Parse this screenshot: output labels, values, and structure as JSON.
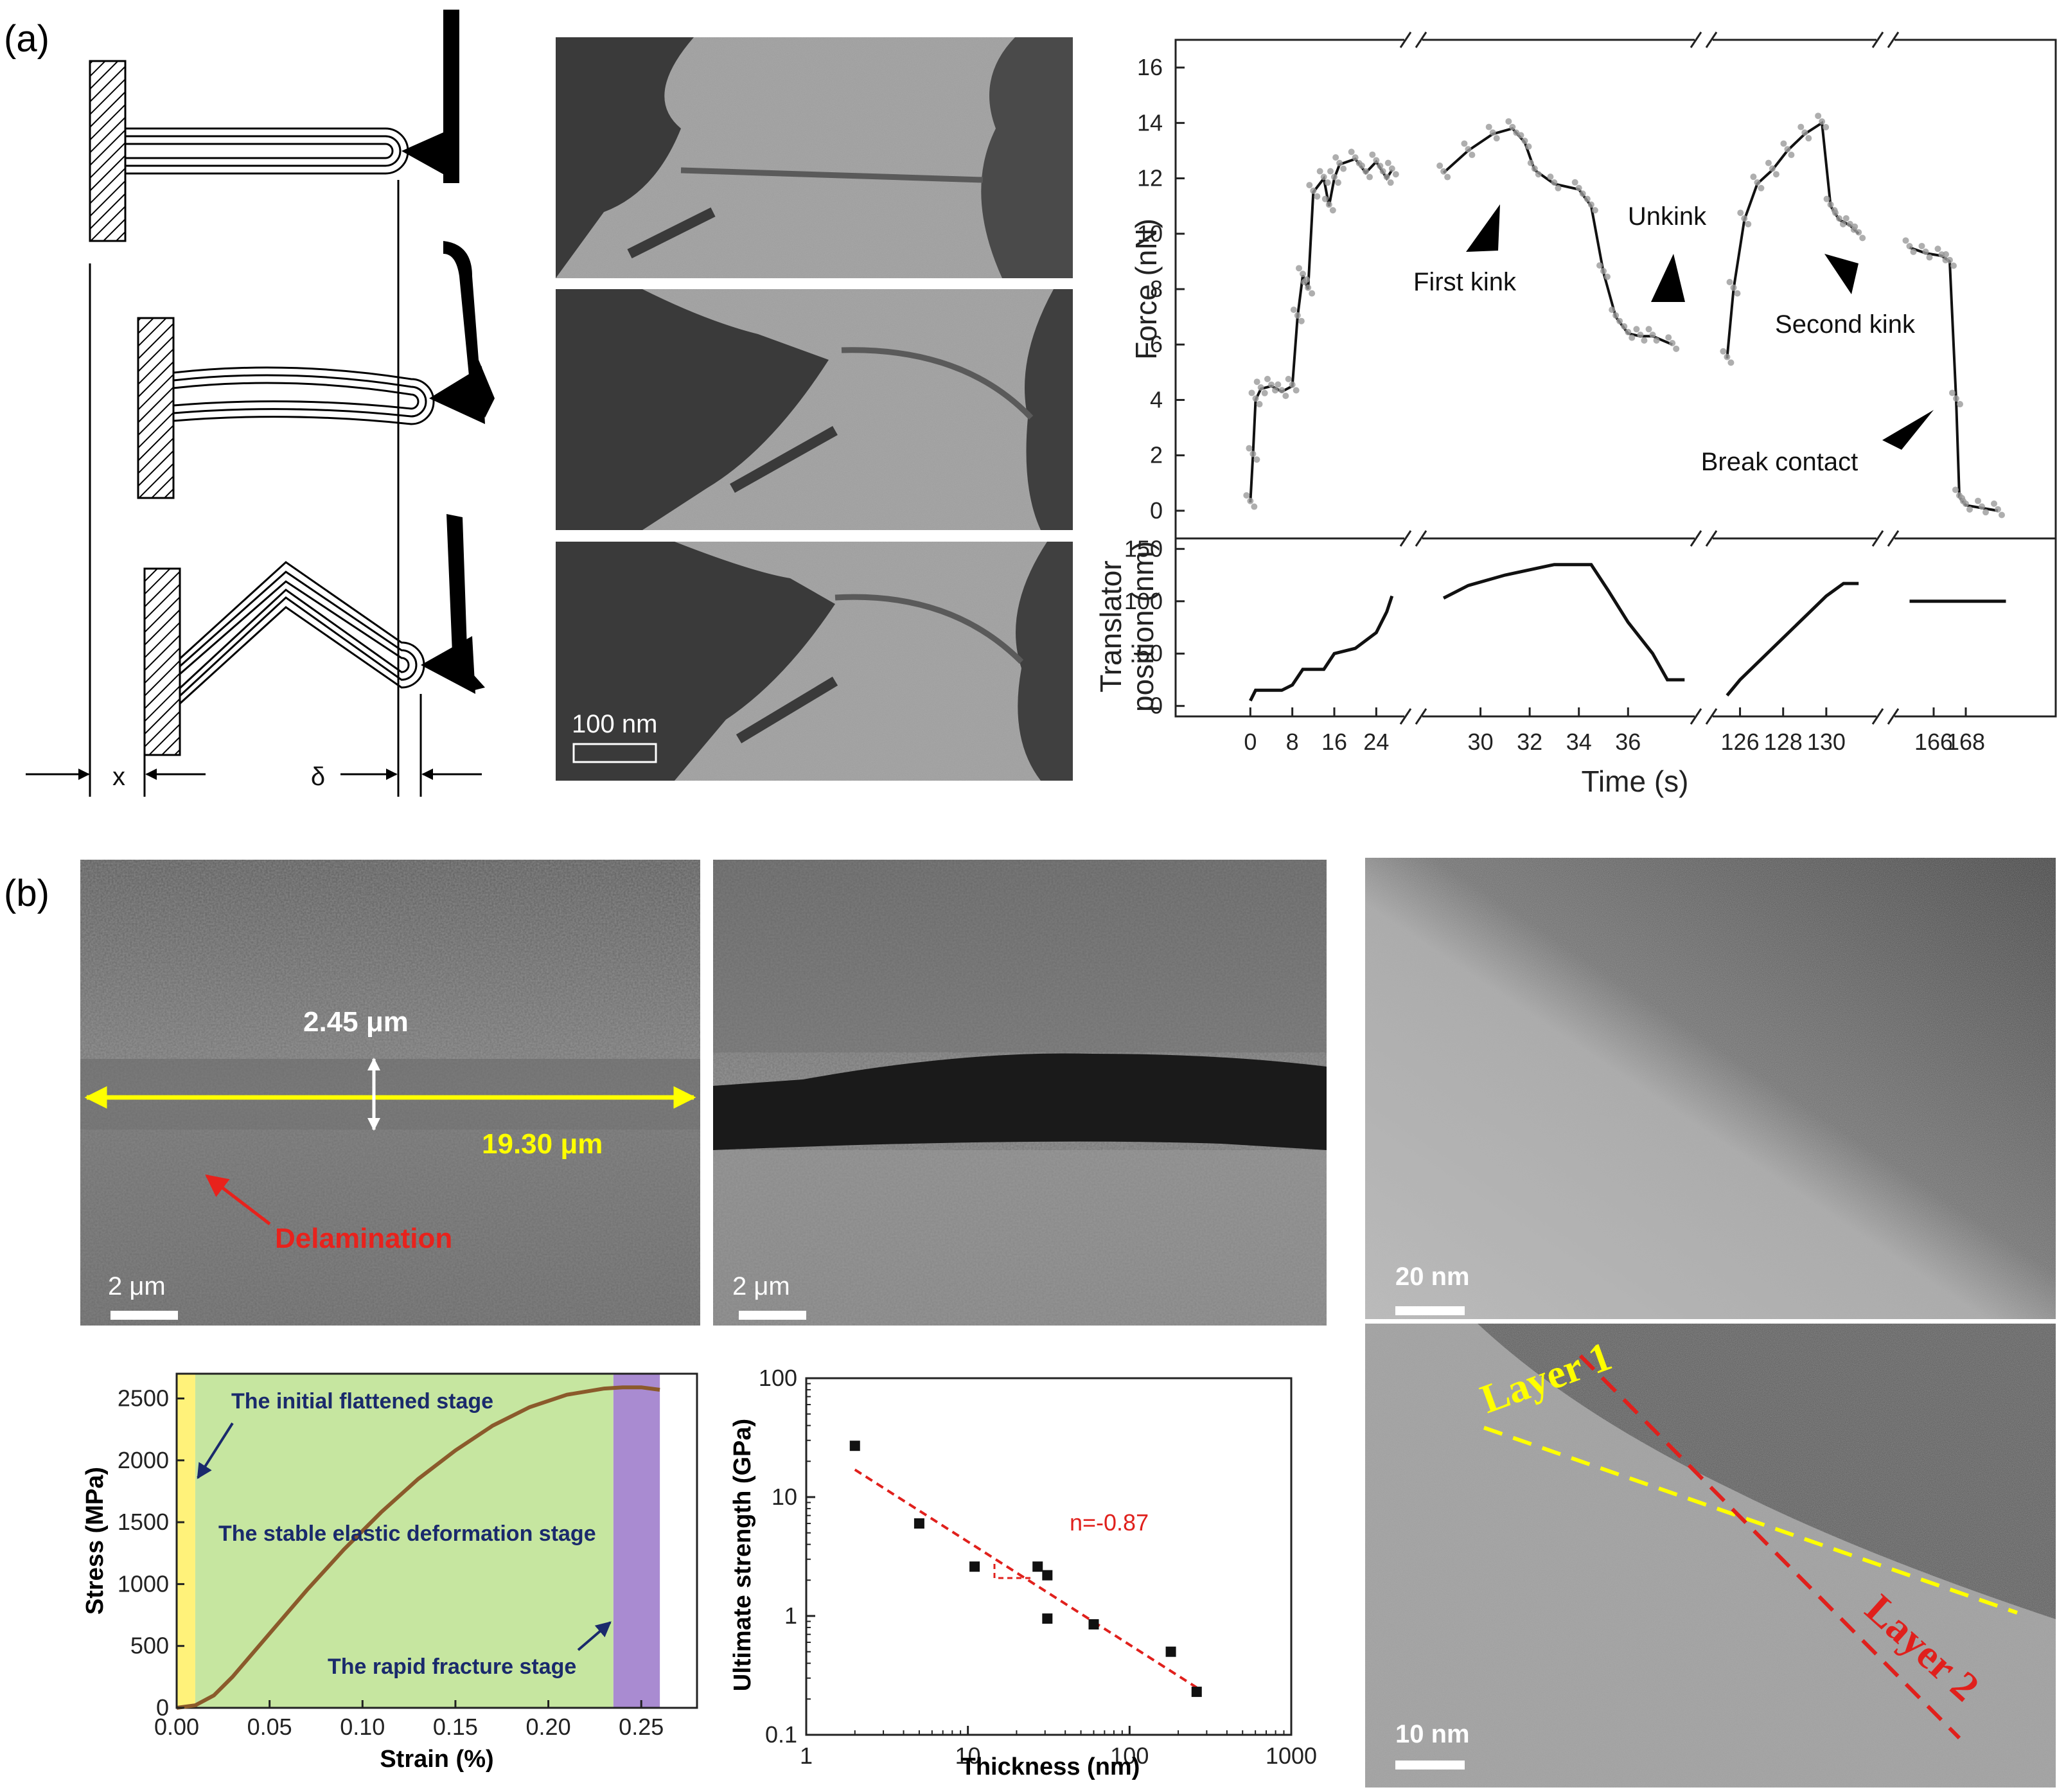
{
  "labels": {
    "panel_a": "(a)",
    "panel_b": "(b)"
  },
  "schematic": {
    "x_label": "x",
    "delta_label": "δ"
  },
  "micrographs_a": {
    "scalebar": "100 nm"
  },
  "sem_b": {
    "thickness": "2.45 μm",
    "length": "19.30 μm",
    "delamination": "Delamination",
    "scalebar_left": "2 μm",
    "scalebar_right": "2 μm"
  },
  "tem_b": {
    "scalebar_top": "20 nm",
    "scalebar_bottom": "10 nm",
    "layer1": "Layer 1",
    "layer2": "Layer 2"
  },
  "colors": {
    "yellow": "#ffff00",
    "red": "#e8221c",
    "green_region": "#c6e6a0",
    "purple_region": "#a98bd1",
    "curve": "#8b5a2b",
    "dash_red": "#e0201c"
  },
  "chart_data": [
    {
      "type": "line",
      "title": "",
      "ylabel": "Force (nN)",
      "xlabel": "Time (s)",
      "ylim": [
        -1,
        17
      ],
      "yticks": [
        0,
        2,
        4,
        6,
        8,
        10,
        12,
        14,
        16
      ],
      "segments": [
        {
          "xticks": [
            "0",
            "8",
            "16",
            "24"
          ],
          "xrange": [
            -2,
            28
          ],
          "points": [
            [
              0,
              0.3
            ],
            [
              0.5,
              2.0
            ],
            [
              1,
              4.0
            ],
            [
              2,
              4.4
            ],
            [
              4,
              4.5
            ],
            [
              6,
              4.3
            ],
            [
              8,
              4.5
            ],
            [
              9,
              7.0
            ],
            [
              10,
              8.5
            ],
            [
              11,
              8.0
            ],
            [
              12,
              11.5
            ],
            [
              14,
              12.0
            ],
            [
              15,
              11.0
            ],
            [
              16,
              12.0
            ],
            [
              17,
              12.5
            ],
            [
              20,
              12.7
            ],
            [
              22,
              12.2
            ],
            [
              24,
              12.6
            ],
            [
              26,
              12.0
            ],
            [
              27,
              12.3
            ]
          ]
        },
        {
          "xticks": [
            "30",
            "32",
            "34",
            "36"
          ],
          "xrange": [
            28,
            38.5
          ],
          "points": [
            [
              28.5,
              12.2
            ],
            [
              29.5,
              13.0
            ],
            [
              30.5,
              13.6
            ],
            [
              31.3,
              13.8
            ],
            [
              31.8,
              13.3
            ],
            [
              32.2,
              12.3
            ],
            [
              33,
              11.8
            ],
            [
              34,
              11.6
            ],
            [
              34.5,
              11.0
            ],
            [
              35,
              8.6
            ],
            [
              35.5,
              7.0
            ],
            [
              36,
              6.4
            ],
            [
              36.5,
              6.3
            ],
            [
              37,
              6.3
            ],
            [
              37.8,
              6.0
            ]
          ]
        },
        {
          "xticks": [
            "126",
            "128",
            "130"
          ],
          "xrange": [
            125,
            132
          ],
          "points": [
            [
              125.4,
              5.5
            ],
            [
              125.7,
              8.0
            ],
            [
              126.2,
              10.5
            ],
            [
              126.8,
              11.8
            ],
            [
              127.5,
              12.3
            ],
            [
              128.2,
              13.0
            ],
            [
              129,
              13.6
            ],
            [
              129.8,
              14.0
            ],
            [
              130.2,
              11.0
            ],
            [
              130.6,
              10.5
            ],
            [
              131.1,
              10.3
            ],
            [
              131.5,
              10.0
            ]
          ]
        },
        {
          "xticks": [
            "166",
            "168"
          ],
          "xrange": [
            164,
            171
          ],
          "points": [
            [
              164.5,
              9.5
            ],
            [
              165.5,
              9.3
            ],
            [
              166.5,
              9.2
            ],
            [
              167,
              9.0
            ],
            [
              167.4,
              4.0
            ],
            [
              167.6,
              0.5
            ],
            [
              168,
              0.2
            ],
            [
              169,
              0.1
            ],
            [
              170,
              0.0
            ]
          ]
        }
      ],
      "annotations": [
        "First kink",
        "Unkink",
        "Second kink",
        "Break contact"
      ]
    },
    {
      "type": "line",
      "ylabel": "Translator position (nm)",
      "ylim": [
        -10,
        160
      ],
      "yticks": [
        0,
        50,
        100,
        150
      ],
      "segments": [
        {
          "points": [
            [
              0,
              5
            ],
            [
              1,
              15
            ],
            [
              6,
              15
            ],
            [
              8,
              20
            ],
            [
              10,
              35
            ],
            [
              14,
              35
            ],
            [
              16,
              50
            ],
            [
              20,
              55
            ],
            [
              24,
              70
            ],
            [
              26,
              90
            ],
            [
              27,
              105
            ]
          ]
        },
        {
          "points": [
            [
              28.5,
              103
            ],
            [
              29.5,
              115
            ],
            [
              31,
              125
            ],
            [
              33,
              135
            ],
            [
              34.5,
              135
            ],
            [
              35.2,
              110
            ],
            [
              36,
              80
            ],
            [
              37,
              50
            ],
            [
              37.6,
              25
            ],
            [
              38.3,
              25
            ]
          ]
        },
        {
          "points": [
            [
              125.4,
              10
            ],
            [
              126,
              25
            ],
            [
              127,
              45
            ],
            [
              128,
              65
            ],
            [
              129,
              85
            ],
            [
              130,
              105
            ],
            [
              130.8,
              117
            ],
            [
              131.5,
              117
            ]
          ]
        },
        {
          "points": [
            [
              164.5,
              100
            ],
            [
              170.5,
              100
            ]
          ]
        }
      ]
    },
    {
      "type": "line",
      "xlabel": "Strain (%)",
      "ylabel": "Stress (MPa)",
      "xlim": [
        0,
        0.28
      ],
      "ylim": [
        0,
        2700
      ],
      "xticks": [
        "0.00",
        "0.05",
        "0.10",
        "0.15",
        "0.20",
        "0.25"
      ],
      "yticks": [
        "0",
        "500",
        "1000",
        "1500",
        "2000",
        "2500"
      ],
      "x": [
        0.0,
        0.01,
        0.02,
        0.03,
        0.05,
        0.07,
        0.09,
        0.11,
        0.13,
        0.15,
        0.17,
        0.19,
        0.21,
        0.23,
        0.24,
        0.25,
        0.26
      ],
      "y": [
        0,
        20,
        100,
        250,
        600,
        950,
        1280,
        1580,
        1850,
        2080,
        2280,
        2430,
        2530,
        2580,
        2590,
        2590,
        2570
      ],
      "regions": [
        {
          "label": "The initial flattened stage",
          "x0": 0.0,
          "x1": 0.01
        },
        {
          "label": "The stable elastic deformation stage",
          "x0": 0.01,
          "x1": 0.235
        },
        {
          "label": "The rapid fracture stage",
          "x0": 0.235,
          "x1": 0.26
        }
      ]
    },
    {
      "type": "scatter",
      "xlabel": "Thickness (nm)",
      "ylabel": "Ultimate strength (GPa)",
      "xscale": "log",
      "yscale": "log",
      "xlim": [
        1,
        1000
      ],
      "ylim": [
        0.1,
        100
      ],
      "xticks": [
        "1",
        "10",
        "100",
        "1000"
      ],
      "yticks": [
        "0.1",
        "1",
        "10",
        "100"
      ],
      "x": [
        2,
        5,
        11,
        27,
        31,
        31,
        60,
        180,
        260
      ],
      "y": [
        27,
        6,
        2.6,
        2.6,
        2.2,
        0.95,
        0.85,
        0.5,
        0.23
      ],
      "fit_label": "n=-0.87",
      "fit": {
        "x": [
          2,
          260
        ],
        "y": [
          17,
          0.25
        ]
      }
    }
  ]
}
